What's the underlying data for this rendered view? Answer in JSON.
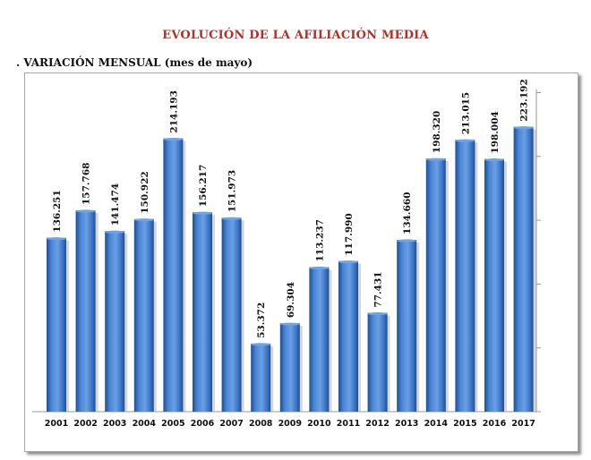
{
  "title": "EVOLUCIÓN DE LA AFILIACIÓN MEDIA",
  "subtitle": ". VARIACIÓN MENSUAL (mes de mayo)",
  "colors": {
    "bar": "#3f7ccf",
    "bar_dark": "#1f4e92",
    "title": "#b2302a",
    "axis": "#9a9a9a"
  },
  "chart_data": {
    "type": "bar",
    "categories": [
      "2001",
      "2002",
      "2003",
      "2004",
      "2005",
      "2006",
      "2007",
      "2008",
      "2009",
      "2010",
      "2011",
      "2012",
      "2013",
      "2014",
      "2015",
      "2016",
      "2017"
    ],
    "values": [
      136251,
      157768,
      141474,
      150922,
      214193,
      156217,
      151973,
      53372,
      69304,
      113237,
      117990,
      77431,
      134660,
      198320,
      213015,
      198004,
      223192
    ],
    "data_labels": [
      "136.251",
      "157.768",
      "141.474",
      "150.922",
      "214.193",
      "156.217",
      "151.973",
      "53.372",
      "69.304",
      "113.237",
      "117.990",
      "77.431",
      "134.660",
      "198.320",
      "213.015",
      "198.004",
      "223.192"
    ],
    "ylim": [
      0,
      250000
    ],
    "grid": false,
    "legend": "none"
  }
}
